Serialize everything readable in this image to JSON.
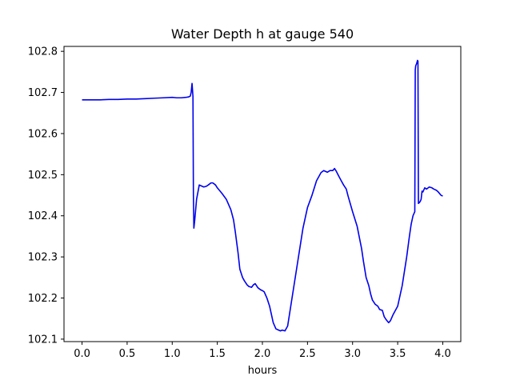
{
  "chart_data": {
    "type": "line",
    "title": "Water Depth h at gauge 540",
    "xlabel": "hours",
    "ylabel": "",
    "xlim": [
      -0.2,
      4.2
    ],
    "ylim": [
      102.094,
      102.812
    ],
    "xticks": [
      "0.0",
      "0.5",
      "1.0",
      "1.5",
      "2.0",
      "2.5",
      "3.0",
      "3.5",
      "4.0"
    ],
    "yticks": [
      "102.1",
      "102.2",
      "102.3",
      "102.4",
      "102.5",
      "102.6",
      "102.7",
      "102.8"
    ],
    "grid": false,
    "legend": "none",
    "series": [
      {
        "color": "#0000ee",
        "x": [
          0.0,
          0.1,
          0.2,
          0.3,
          0.4,
          0.5,
          0.6,
          0.7,
          0.8,
          0.9,
          1.0,
          1.05,
          1.1,
          1.15,
          1.18,
          1.2,
          1.21,
          1.22,
          1.23,
          1.235,
          1.24,
          1.25,
          1.27,
          1.3,
          1.33,
          1.35,
          1.38,
          1.4,
          1.43,
          1.45,
          1.48,
          1.5,
          1.55,
          1.6,
          1.62,
          1.65,
          1.68,
          1.7,
          1.73,
          1.75,
          1.78,
          1.8,
          1.83,
          1.85,
          1.88,
          1.9,
          1.92,
          1.95,
          1.98,
          2.0,
          2.02,
          2.05,
          2.08,
          2.1,
          2.12,
          2.15,
          2.18,
          2.2,
          2.22,
          2.25,
          2.28,
          2.3,
          2.35,
          2.4,
          2.45,
          2.5,
          2.55,
          2.6,
          2.65,
          2.68,
          2.7,
          2.72,
          2.75,
          2.78,
          2.8,
          2.82,
          2.85,
          2.88,
          2.9,
          2.93,
          2.95,
          3.0,
          3.05,
          3.1,
          3.12,
          3.15,
          3.18,
          3.2,
          3.22,
          3.25,
          3.28,
          3.3,
          3.33,
          3.35,
          3.37,
          3.4,
          3.42,
          3.45,
          3.48,
          3.5,
          3.55,
          3.6,
          3.63,
          3.65,
          3.67,
          3.69,
          3.695,
          3.7,
          3.71,
          3.72,
          3.725,
          3.73,
          3.74,
          3.75,
          3.76,
          3.77,
          3.78,
          3.8,
          3.82,
          3.85,
          3.88,
          3.9,
          3.93,
          3.95,
          3.98,
          4.0
        ],
        "y": [
          102.682,
          102.682,
          102.682,
          102.683,
          102.683,
          102.684,
          102.684,
          102.685,
          102.686,
          102.687,
          102.688,
          102.687,
          102.687,
          102.688,
          102.689,
          102.691,
          102.7,
          102.722,
          102.69,
          102.45,
          102.37,
          102.39,
          102.44,
          102.475,
          102.472,
          102.47,
          102.472,
          102.475,
          102.48,
          102.48,
          102.475,
          102.468,
          102.455,
          102.44,
          102.43,
          102.415,
          102.39,
          102.36,
          102.31,
          102.27,
          102.25,
          102.242,
          102.232,
          102.228,
          102.226,
          102.232,
          102.235,
          102.225,
          102.22,
          102.218,
          102.215,
          102.2,
          102.18,
          102.16,
          102.14,
          102.125,
          102.122,
          102.12,
          102.122,
          102.12,
          102.132,
          102.16,
          102.23,
          102.3,
          102.37,
          102.42,
          102.45,
          102.485,
          102.505,
          102.51,
          102.508,
          102.506,
          102.51,
          102.51,
          102.515,
          102.508,
          102.495,
          102.483,
          102.475,
          102.465,
          102.448,
          102.41,
          102.375,
          102.32,
          102.29,
          102.25,
          102.23,
          102.21,
          102.195,
          102.185,
          102.18,
          102.172,
          102.17,
          102.155,
          102.148,
          102.14,
          102.145,
          102.16,
          102.172,
          102.18,
          102.23,
          102.3,
          102.35,
          102.38,
          102.4,
          102.41,
          102.755,
          102.765,
          102.77,
          102.778,
          102.776,
          102.43,
          102.432,
          102.435,
          102.44,
          102.46,
          102.458,
          102.468,
          102.465,
          102.47,
          102.468,
          102.465,
          102.462,
          102.458,
          102.45,
          102.448
        ]
      }
    ]
  }
}
